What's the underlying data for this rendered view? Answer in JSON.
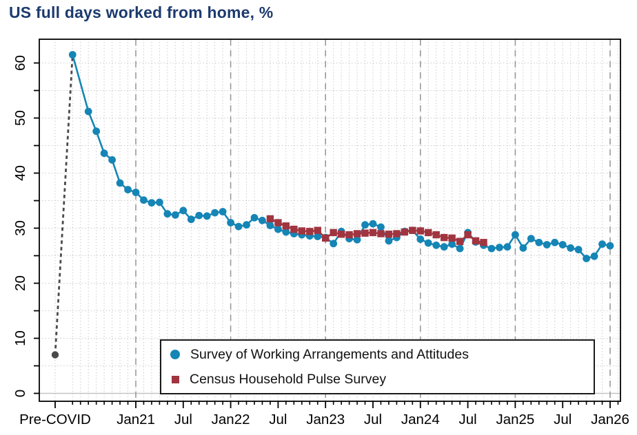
{
  "title": "US full days worked from home, %",
  "colors": {
    "title": "#1c3a6e",
    "swaa_blue": "#1585b5",
    "census_red": "#a03540",
    "pre_covid_gray": "#4a4a4a",
    "year_dash_gray": "#999999",
    "dotted_grid": "#bdbdbd",
    "zero_line": "#c4c4c4",
    "axis": "#000000"
  },
  "legend": {
    "items": [
      {
        "label": "Survey of Working Arrangements and Attitudes",
        "marker": "circle",
        "color": "#1585b5"
      },
      {
        "label": "Census Household Pulse Survey",
        "marker": "square",
        "color": "#a03540"
      }
    ],
    "position": "bottom-center"
  },
  "chart_data": {
    "type": "line",
    "title": "US full days worked from home, %",
    "xlabel": "",
    "ylabel": "",
    "ylim": [
      0,
      63
    ],
    "y_ticks": [
      0,
      10,
      20,
      30,
      40,
      50,
      60
    ],
    "y_minor_step": 5,
    "grid": "dotted monthly vertical + 5-unit horizontal; dashed vertical line each January",
    "x_ticks": [
      {
        "label": "Pre-COVID",
        "pre": true
      },
      {
        "label": "Jan21",
        "m": "2021-01"
      },
      {
        "label": "Jul",
        "m": "2021-07"
      },
      {
        "label": "Jan22",
        "m": "2022-01"
      },
      {
        "label": "Jul",
        "m": "2022-07"
      },
      {
        "label": "Jan23",
        "m": "2023-01"
      },
      {
        "label": "Jul",
        "m": "2023-07"
      },
      {
        "label": "Jan24",
        "m": "2024-01"
      },
      {
        "label": "Jul",
        "m": "2024-07"
      },
      {
        "label": "Jan25",
        "m": "2025-01"
      },
      {
        "label": "Jul",
        "m": "2025-07"
      },
      {
        "label": "Jan26",
        "m": "2026-01"
      }
    ],
    "year_gridlines": [
      "2021-01",
      "2022-01",
      "2023-01",
      "2024-01",
      "2025-01",
      "2026-01"
    ],
    "pre_covid": {
      "label": "Pre-COVID",
      "value": 7.0
    },
    "series": [
      {
        "name": "Survey of Working Arrangements and Attitudes",
        "marker": "circle",
        "color": "#1585b5",
        "points": [
          [
            "2020-05",
            61.5
          ],
          [
            "2020-07",
            51.2
          ],
          [
            "2020-08",
            47.6
          ],
          [
            "2020-09",
            43.6
          ],
          [
            "2020-10",
            42.4
          ],
          [
            "2020-11",
            38.2
          ],
          [
            "2020-12",
            37.0
          ],
          [
            "2021-01",
            36.5
          ],
          [
            "2021-02",
            35.1
          ],
          [
            "2021-03",
            34.6
          ],
          [
            "2021-04",
            34.7
          ],
          [
            "2021-05",
            32.6
          ],
          [
            "2021-06",
            32.4
          ],
          [
            "2021-07",
            33.2
          ],
          [
            "2021-08",
            31.6
          ],
          [
            "2021-09",
            32.3
          ],
          [
            "2021-10",
            32.2
          ],
          [
            "2021-11",
            32.8
          ],
          [
            "2021-12",
            33.0
          ],
          [
            "2022-01",
            31.0
          ],
          [
            "2022-02",
            30.3
          ],
          [
            "2022-03",
            30.6
          ],
          [
            "2022-04",
            31.9
          ],
          [
            "2022-05",
            31.4
          ],
          [
            "2022-06",
            30.5
          ],
          [
            "2022-07",
            29.8
          ],
          [
            "2022-08",
            29.3
          ],
          [
            "2022-09",
            29.0
          ],
          [
            "2022-10",
            28.8
          ],
          [
            "2022-11",
            28.6
          ],
          [
            "2022-12",
            28.5
          ],
          [
            "2023-01",
            28.3
          ],
          [
            "2023-02",
            27.2
          ],
          [
            "2023-03",
            29.4
          ],
          [
            "2023-04",
            28.1
          ],
          [
            "2023-05",
            27.9
          ],
          [
            "2023-06",
            30.6
          ],
          [
            "2023-07",
            30.8
          ],
          [
            "2023-08",
            30.2
          ],
          [
            "2023-09",
            27.7
          ],
          [
            "2023-10",
            28.3
          ],
          [
            "2023-11",
            29.4
          ],
          [
            "2023-12",
            29.6
          ],
          [
            "2024-01",
            28.0
          ],
          [
            "2024-02",
            27.3
          ],
          [
            "2024-03",
            26.9
          ],
          [
            "2024-04",
            26.6
          ],
          [
            "2024-05",
            27.1
          ],
          [
            "2024-06",
            26.3
          ],
          [
            "2024-07",
            29.2
          ],
          [
            "2024-08",
            27.5
          ],
          [
            "2024-09",
            26.9
          ],
          [
            "2024-10",
            26.3
          ],
          [
            "2024-11",
            26.5
          ],
          [
            "2024-12",
            26.6
          ],
          [
            "2025-01",
            28.8
          ],
          [
            "2025-02",
            26.4
          ],
          [
            "2025-03",
            28.1
          ],
          [
            "2025-04",
            27.4
          ],
          [
            "2025-05",
            27.0
          ],
          [
            "2025-06",
            27.4
          ],
          [
            "2025-07",
            27.0
          ],
          [
            "2025-08",
            26.4
          ],
          [
            "2025-09",
            26.1
          ],
          [
            "2025-10",
            24.5
          ],
          [
            "2025-11",
            24.9
          ],
          [
            "2025-12",
            27.1
          ],
          [
            "2026-01",
            26.8
          ]
        ]
      },
      {
        "name": "Census Household Pulse Survey",
        "marker": "square",
        "color": "#a03540",
        "points": [
          [
            "2022-06",
            31.7
          ],
          [
            "2022-07",
            31.0
          ],
          [
            "2022-08",
            30.4
          ],
          [
            "2022-09",
            29.8
          ],
          [
            "2022-10",
            29.5
          ],
          [
            "2022-11",
            29.4
          ],
          [
            "2022-12",
            29.6
          ],
          [
            "2023-01",
            28.2
          ],
          [
            "2023-02",
            29.2
          ],
          [
            "2023-03",
            28.9
          ],
          [
            "2023-04",
            28.8
          ],
          [
            "2023-05",
            29.0
          ],
          [
            "2023-06",
            29.1
          ],
          [
            "2023-07",
            29.2
          ],
          [
            "2023-08",
            29.0
          ],
          [
            "2023-09",
            28.9
          ],
          [
            "2023-10",
            29.0
          ],
          [
            "2023-11",
            29.3
          ],
          [
            "2023-12",
            29.6
          ],
          [
            "2024-01",
            29.5
          ],
          [
            "2024-02",
            29.2
          ],
          [
            "2024-03",
            28.8
          ],
          [
            "2024-04",
            28.3
          ],
          [
            "2024-05",
            28.2
          ],
          [
            "2024-06",
            27.6
          ],
          [
            "2024-07",
            28.8
          ],
          [
            "2024-08",
            27.7
          ],
          [
            "2024-09",
            27.4
          ]
        ]
      }
    ]
  }
}
